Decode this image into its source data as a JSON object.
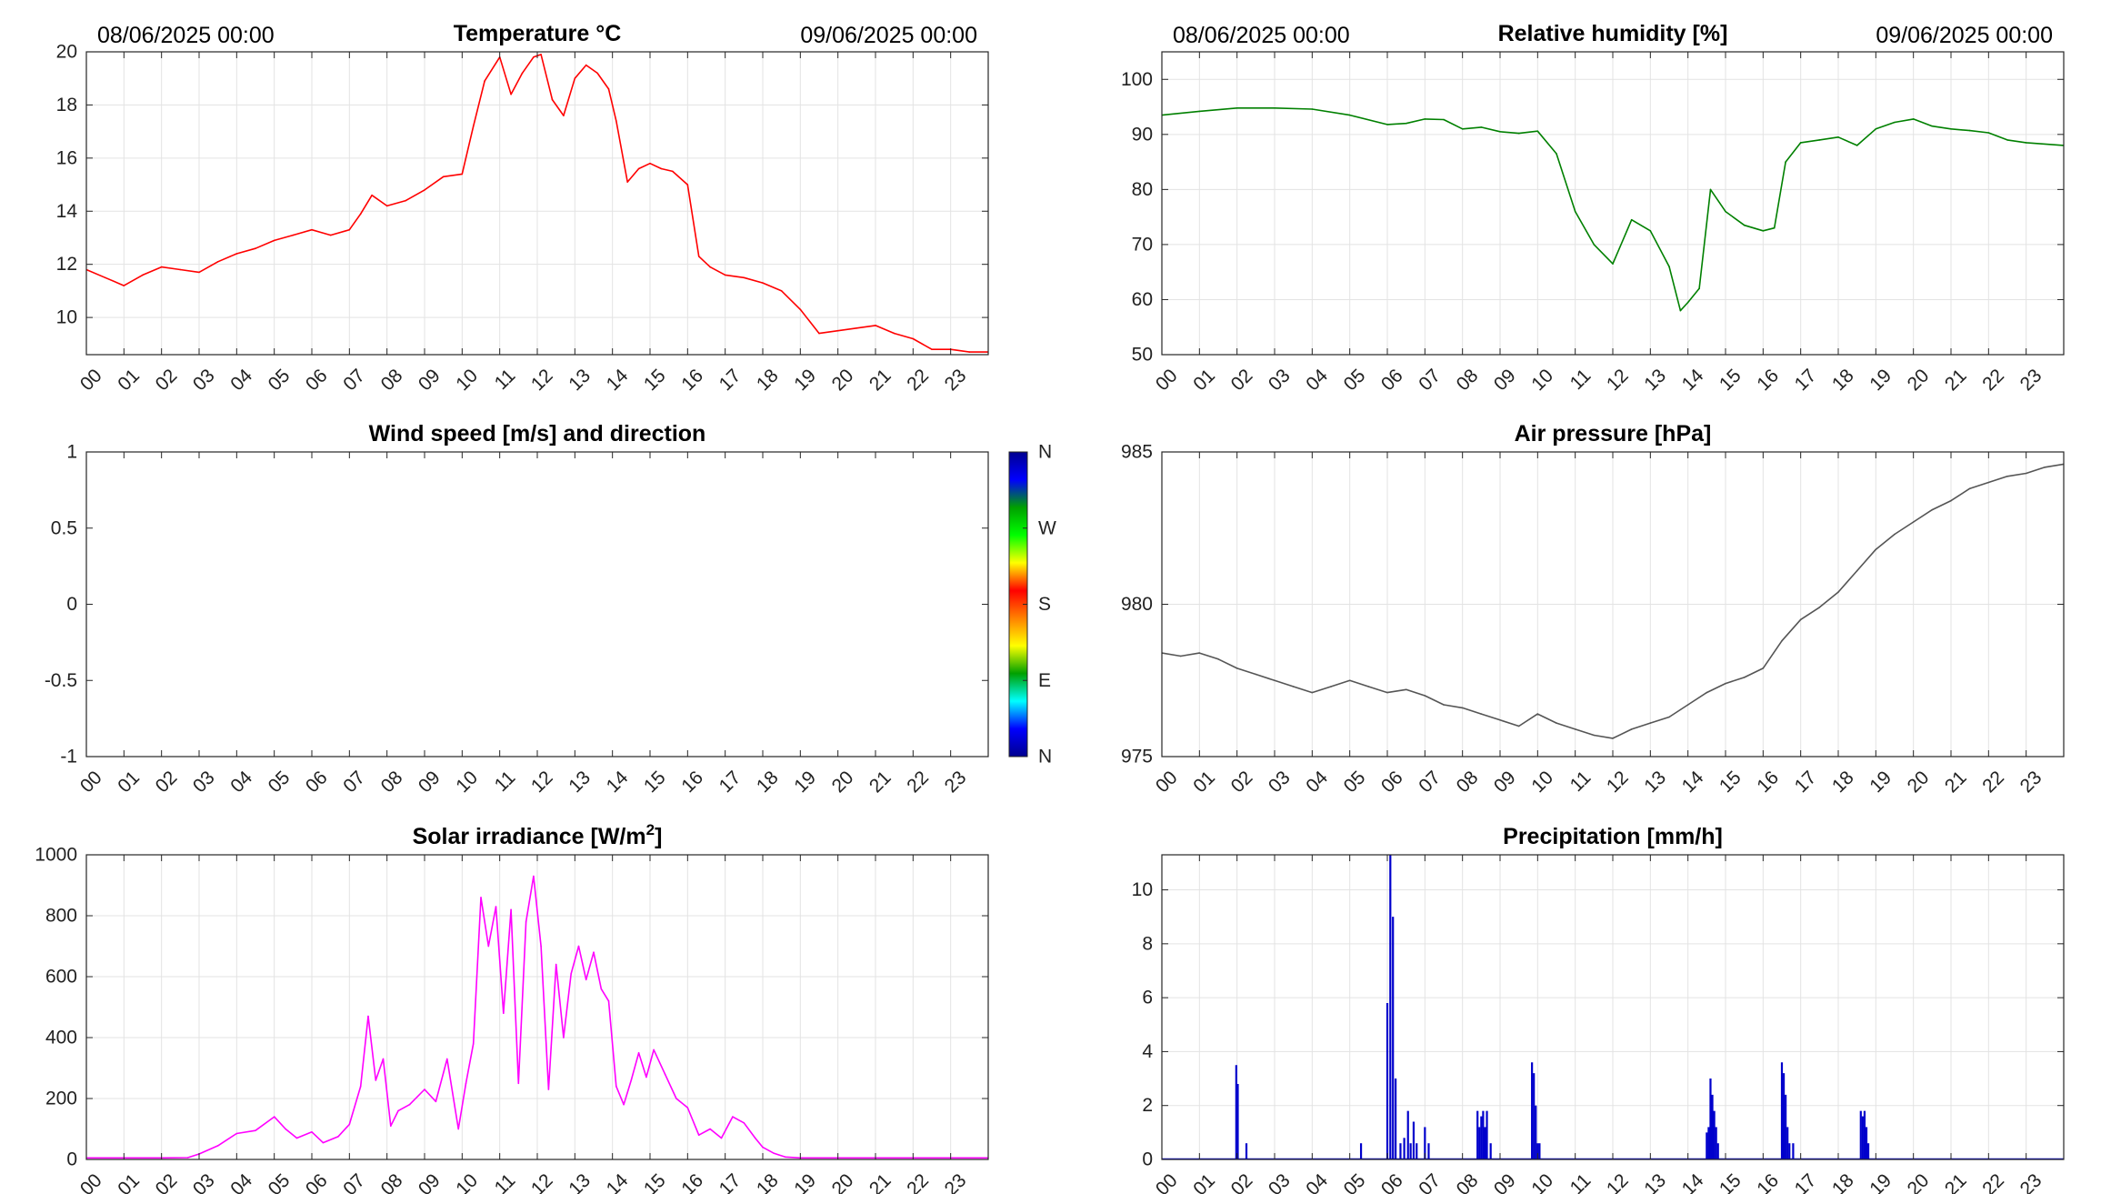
{
  "chart_data": [
    {
      "id": "temperature",
      "type": "line",
      "title": "Temperature °C",
      "start_label": "08/06/2025 00:00",
      "end_label": "09/06/2025 00:00",
      "color": "#ff0000",
      "ylim": [
        8.6,
        20
      ],
      "yticks": [
        10,
        12,
        14,
        16,
        18,
        20
      ],
      "xlim": [
        0,
        24
      ],
      "xticks": [
        "00",
        "01",
        "02",
        "03",
        "04",
        "05",
        "06",
        "07",
        "08",
        "09",
        "10",
        "11",
        "12",
        "13",
        "14",
        "15",
        "16",
        "17",
        "18",
        "19",
        "20",
        "21",
        "22",
        "23"
      ],
      "grid": true,
      "x": [
        0,
        0.5,
        1,
        1.5,
        2,
        2.5,
        3,
        3.5,
        4,
        4.5,
        5,
        5.5,
        6,
        6.5,
        7,
        7.3,
        7.6,
        8,
        8.5,
        9,
        9.5,
        10,
        10.3,
        10.6,
        11,
        11.3,
        11.6,
        11.9,
        12.1,
        12.4,
        12.7,
        13,
        13.3,
        13.6,
        13.9,
        14.1,
        14.4,
        14.7,
        15,
        15.3,
        15.6,
        16,
        16.3,
        16.6,
        17,
        17.5,
        18,
        18.5,
        19,
        19.5,
        20,
        20.5,
        21,
        21.5,
        22,
        22.5,
        23,
        23.5,
        24
      ],
      "y": [
        11.8,
        11.5,
        11.2,
        11.6,
        11.9,
        11.8,
        11.7,
        12.1,
        12.4,
        12.6,
        12.9,
        13.1,
        13.3,
        13.1,
        13.3,
        13.9,
        14.6,
        14.2,
        14.4,
        14.8,
        15.3,
        15.4,
        17.2,
        18.9,
        19.8,
        18.4,
        19.2,
        19.8,
        19.9,
        18.2,
        17.6,
        19.0,
        19.5,
        19.2,
        18.6,
        17.4,
        15.1,
        15.6,
        15.8,
        15.6,
        15.5,
        15.0,
        12.3,
        11.9,
        11.6,
        11.5,
        11.3,
        11.0,
        10.3,
        9.4,
        9.5,
        9.6,
        9.7,
        9.4,
        9.2,
        8.8,
        8.8,
        8.7,
        8.7
      ]
    },
    {
      "id": "humidity",
      "type": "line",
      "title": "Relative humidity [%]",
      "start_label": "08/06/2025 00:00",
      "end_label": "09/06/2025 00:00",
      "color": "#008000",
      "ylim": [
        50,
        105
      ],
      "yticks": [
        50,
        60,
        70,
        80,
        90,
        100
      ],
      "xlim": [
        0,
        24
      ],
      "xticks": [
        "00",
        "01",
        "02",
        "03",
        "04",
        "05",
        "06",
        "07",
        "08",
        "09",
        "10",
        "11",
        "12",
        "13",
        "14",
        "15",
        "16",
        "17",
        "18",
        "19",
        "20",
        "21",
        "22",
        "23"
      ],
      "grid": true,
      "x": [
        0,
        1,
        2,
        3,
        4,
        5,
        6,
        6.5,
        7,
        7.5,
        8,
        8.5,
        9,
        9.5,
        10,
        10.5,
        11,
        11.5,
        12,
        12.5,
        13,
        13.5,
        13.8,
        14,
        14.3,
        14.6,
        15,
        15.5,
        16,
        16.3,
        16.6,
        17,
        17.5,
        18,
        18.5,
        19,
        19.5,
        20,
        20.5,
        21,
        21.5,
        22,
        22.5,
        23,
        24
      ],
      "y": [
        93.5,
        94.2,
        94.8,
        94.8,
        94.6,
        93.5,
        91.8,
        92.0,
        92.8,
        92.7,
        91.0,
        91.3,
        90.5,
        90.2,
        90.6,
        86.5,
        76.0,
        70.0,
        66.5,
        74.5,
        72.5,
        66.0,
        58.0,
        59.5,
        62.0,
        80.0,
        76.0,
        73.5,
        72.5,
        73.0,
        85.0,
        88.5,
        89.0,
        89.5,
        88.0,
        91.0,
        92.2,
        92.8,
        91.5,
        91.0,
        90.7,
        90.3,
        89.0,
        88.5,
        88.0
      ]
    },
    {
      "id": "wind",
      "type": "scatter",
      "title": "Wind speed [m/s] and direction",
      "ylim": [
        -1,
        1
      ],
      "yticks": [
        -1,
        -0.5,
        0,
        0.5,
        1
      ],
      "ytick_labels": [
        "-1",
        "-0.5",
        "0",
        "0.5",
        "1"
      ],
      "xlim": [
        0,
        24
      ],
      "xticks": [
        "00",
        "01",
        "02",
        "03",
        "04",
        "05",
        "06",
        "07",
        "08",
        "09",
        "10",
        "11",
        "12",
        "13",
        "14",
        "15",
        "16",
        "17",
        "18",
        "19",
        "20",
        "21",
        "22",
        "23"
      ],
      "grid": false,
      "x": [],
      "y": [],
      "colorbar": {
        "labels": [
          "N",
          "E",
          "S",
          "W",
          "N"
        ],
        "colors": [
          "#00008f",
          "#0000ff",
          "#00ffff",
          "#00a000",
          "#ffff00",
          "#ff8000",
          "#ff0000",
          "#ffff00",
          "#00ff00",
          "#00a000",
          "#0000ff",
          "#00008f"
        ]
      }
    },
    {
      "id": "pressure",
      "type": "line",
      "title": "Air pressure [hPa]",
      "color": "#555555",
      "ylim": [
        975,
        985
      ],
      "yticks": [
        975,
        980,
        985
      ],
      "xlim": [
        0,
        24
      ],
      "xticks": [
        "00",
        "01",
        "02",
        "03",
        "04",
        "05",
        "06",
        "07",
        "08",
        "09",
        "10",
        "11",
        "12",
        "13",
        "14",
        "15",
        "16",
        "17",
        "18",
        "19",
        "20",
        "21",
        "22",
        "23"
      ],
      "grid": true,
      "x": [
        0,
        0.5,
        1,
        1.5,
        2,
        2.5,
        3,
        3.5,
        4,
        4.5,
        5,
        5.5,
        6,
        6.5,
        7,
        7.5,
        8,
        8.5,
        9,
        9.5,
        10,
        10.5,
        11,
        11.5,
        12,
        12.5,
        13,
        13.5,
        14,
        14.5,
        15,
        15.5,
        16,
        16.5,
        17,
        17.5,
        18,
        18.5,
        19,
        19.5,
        20,
        20.5,
        21,
        21.5,
        22,
        22.5,
        23,
        23.5,
        24
      ],
      "y": [
        978.4,
        978.3,
        978.4,
        978.2,
        977.9,
        977.7,
        977.5,
        977.3,
        977.1,
        977.3,
        977.5,
        977.3,
        977.1,
        977.2,
        977.0,
        976.7,
        976.6,
        976.4,
        976.2,
        976.0,
        976.4,
        976.1,
        975.9,
        975.7,
        975.6,
        975.9,
        976.1,
        976.3,
        976.7,
        977.1,
        977.4,
        977.6,
        977.9,
        978.8,
        979.5,
        979.9,
        980.4,
        981.1,
        981.8,
        982.3,
        982.7,
        983.1,
        983.4,
        983.8,
        984.0,
        984.2,
        984.3,
        984.5,
        984.6
      ]
    },
    {
      "id": "solar",
      "type": "line",
      "title": "Solar irradiance [W/m",
      "title_superscript": "2",
      "title_suffix": "]",
      "color": "#ff00ff",
      "ylim": [
        0,
        1000
      ],
      "yticks": [
        0,
        200,
        400,
        600,
        800,
        1000
      ],
      "xlim": [
        0,
        24
      ],
      "xticks": [
        "00",
        "01",
        "02",
        "03",
        "04",
        "05",
        "06",
        "07",
        "08",
        "09",
        "10",
        "11",
        "12",
        "13",
        "14",
        "15",
        "16",
        "17",
        "18",
        "19",
        "20",
        "21",
        "22",
        "23"
      ],
      "grid": true,
      "x": [
        0,
        1,
        2,
        2.7,
        3,
        3.5,
        4,
        4.5,
        5,
        5.3,
        5.6,
        6,
        6.3,
        6.7,
        7,
        7.3,
        7.5,
        7.7,
        7.9,
        8.1,
        8.3,
        8.6,
        9,
        9.3,
        9.6,
        9.9,
        10.1,
        10.3,
        10.5,
        10.7,
        10.9,
        11.1,
        11.3,
        11.5,
        11.7,
        11.9,
        12.1,
        12.3,
        12.5,
        12.7,
        12.9,
        13.1,
        13.3,
        13.5,
        13.7,
        13.9,
        14.1,
        14.3,
        14.5,
        14.7,
        14.9,
        15.1,
        15.4,
        15.7,
        16,
        16.3,
        16.6,
        16.9,
        17.2,
        17.5,
        17.8,
        18,
        18.3,
        18.6,
        19,
        20,
        21,
        22,
        23,
        24
      ],
      "y": [
        5,
        5,
        5,
        6,
        18,
        45,
        85,
        95,
        140,
        100,
        70,
        90,
        55,
        75,
        115,
        240,
        470,
        260,
        330,
        110,
        160,
        180,
        230,
        190,
        330,
        100,
        250,
        380,
        860,
        700,
        830,
        480,
        820,
        250,
        780,
        930,
        700,
        230,
        640,
        400,
        610,
        700,
        590,
        680,
        560,
        520,
        240,
        180,
        260,
        350,
        270,
        360,
        280,
        200,
        170,
        80,
        100,
        70,
        140,
        120,
        70,
        40,
        20,
        8,
        5,
        5,
        5,
        5,
        5,
        5
      ]
    },
    {
      "id": "precipitation",
      "type": "bar",
      "title": "Precipitation [mm/h]",
      "color": "#0000cc",
      "ylim": [
        0,
        11.3
      ],
      "yticks": [
        0,
        2,
        4,
        6,
        8,
        10
      ],
      "xlim": [
        0,
        24
      ],
      "xticks": [
        "00",
        "01",
        "02",
        "03",
        "04",
        "05",
        "06",
        "07",
        "08",
        "09",
        "10",
        "11",
        "12",
        "13",
        "14",
        "15",
        "16",
        "17",
        "18",
        "19",
        "20",
        "21",
        "22",
        "23"
      ],
      "grid": true,
      "x": [
        1.98,
        2.02,
        2.25,
        5.3,
        6.0,
        6.08,
        6.15,
        6.22,
        6.35,
        6.45,
        6.55,
        6.62,
        6.7,
        6.78,
        7.0,
        7.1,
        8.4,
        8.45,
        8.5,
        8.55,
        8.6,
        8.65,
        8.75,
        9.85,
        9.9,
        9.95,
        10.0,
        10.05,
        14.5,
        14.55,
        14.6,
        14.65,
        14.7,
        14.75,
        14.8,
        16.5,
        16.55,
        16.6,
        16.65,
        16.7,
        16.8,
        18.6,
        18.65,
        18.7,
        18.75,
        18.8
      ],
      "y": [
        3.5,
        2.8,
        0.6,
        0.6,
        5.8,
        11.3,
        9.0,
        3.0,
        0.6,
        0.8,
        1.8,
        0.6,
        1.4,
        0.6,
        1.2,
        0.6,
        1.8,
        1.2,
        1.6,
        1.8,
        1.2,
        1.8,
        0.6,
        3.6,
        3.2,
        2.0,
        0.6,
        0.6,
        1.0,
        1.2,
        3.0,
        2.4,
        1.8,
        1.2,
        0.6,
        3.6,
        3.2,
        2.4,
        1.2,
        0.6,
        0.6,
        1.8,
        1.6,
        1.8,
        1.2,
        0.6
      ]
    }
  ]
}
